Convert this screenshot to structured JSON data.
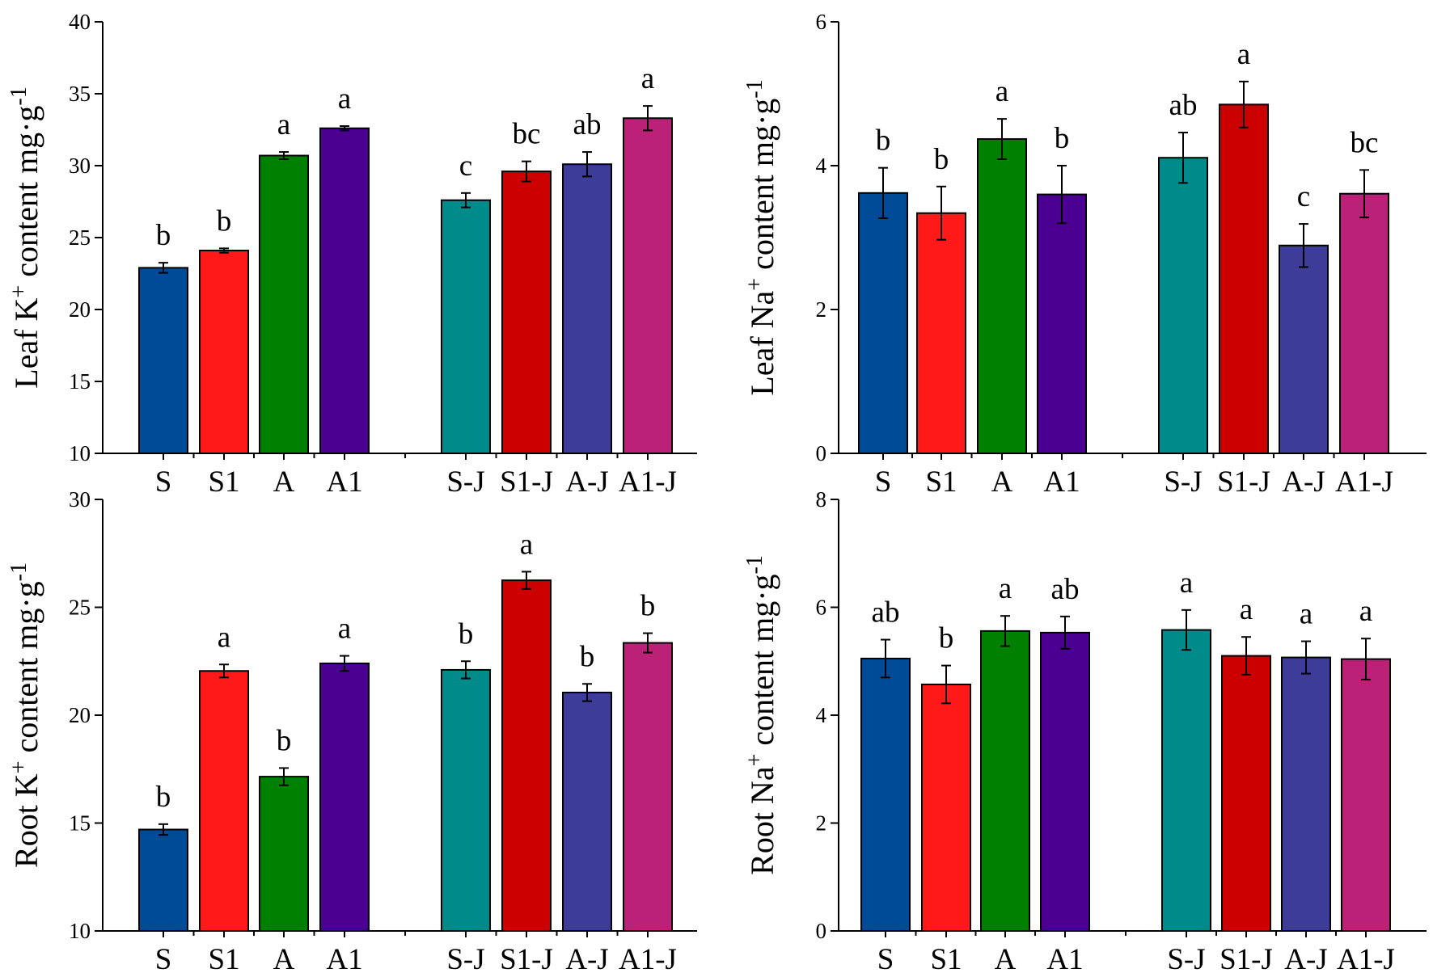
{
  "chart_data": [
    {
      "type": "bar",
      "ylabel": {
        "pre": "Leaf K",
        "ion": "+",
        "mid": " content mg·g",
        "exp": "-1"
      },
      "ylim": [
        10,
        40
      ],
      "yticks": [
        "10",
        "15",
        "20",
        "25",
        "30",
        "35",
        "40"
      ],
      "categories": [
        "S",
        "S1",
        "A",
        "A1",
        "S-J",
        "S1-J",
        "A-J",
        "A1-J"
      ],
      "values": [
        22.9,
        24.1,
        30.7,
        32.6,
        27.6,
        29.6,
        30.1,
        33.3
      ],
      "errors": [
        0.35,
        0.15,
        0.25,
        0.15,
        0.5,
        0.7,
        0.85,
        0.85
      ],
      "letters": [
        "b",
        "b",
        "a",
        "a",
        "c",
        "bc",
        "ab",
        "a"
      ],
      "colors": [
        "#004b97",
        "#ff1919",
        "#008000",
        "#4b0092",
        "#008a8a",
        "#cc0000",
        "#3d3d99",
        "#bb2277"
      ]
    },
    {
      "type": "bar",
      "ylabel": {
        "pre": "Leaf Na",
        "ion": "+",
        "mid": " content mg·g",
        "exp": "-1"
      },
      "ylim": [
        0,
        6
      ],
      "yticks": [
        "0",
        "2",
        "4",
        "6"
      ],
      "categories": [
        "S",
        "S1",
        "A",
        "A1",
        "S-J",
        "S1-J",
        "A-J",
        "A1-J"
      ],
      "values": [
        3.62,
        3.34,
        4.37,
        3.6,
        4.11,
        4.85,
        2.89,
        3.61
      ],
      "errors": [
        0.35,
        0.37,
        0.28,
        0.4,
        0.35,
        0.32,
        0.3,
        0.33
      ],
      "letters": [
        "b",
        "b",
        "a",
        "b",
        "ab",
        "a",
        "c",
        "bc"
      ],
      "colors": [
        "#004b97",
        "#ff1919",
        "#008000",
        "#4b0092",
        "#008a8a",
        "#cc0000",
        "#3d3d99",
        "#bb2277"
      ]
    },
    {
      "type": "bar",
      "ylabel": {
        "pre": "Root K",
        "ion": "+",
        "mid": " content mg·g",
        "exp": "-1"
      },
      "ylim": [
        10,
        30
      ],
      "yticks": [
        "10",
        "15",
        "20",
        "25",
        "30"
      ],
      "categories": [
        "S",
        "S1",
        "A",
        "A1",
        "S-J",
        "S1-J",
        "A-J",
        "A1-J"
      ],
      "values": [
        14.7,
        22.05,
        17.15,
        22.4,
        22.1,
        26.25,
        21.05,
        23.35
      ],
      "errors": [
        0.25,
        0.3,
        0.4,
        0.35,
        0.4,
        0.4,
        0.4,
        0.45
      ],
      "letters": [
        "b",
        "a",
        "b",
        "a",
        "b",
        "a",
        "b",
        "b"
      ],
      "colors": [
        "#004b97",
        "#ff1919",
        "#008000",
        "#4b0092",
        "#008a8a",
        "#cc0000",
        "#3d3d99",
        "#bb2277"
      ]
    },
    {
      "type": "bar",
      "ylabel": {
        "pre": "Root Na",
        "ion": "+",
        "mid": " content mg·g",
        "exp": "-1"
      },
      "ylim": [
        0,
        8
      ],
      "yticks": [
        "0",
        "2",
        "4",
        "6",
        "8"
      ],
      "categories": [
        "S",
        "S1",
        "A",
        "A1",
        "S-J",
        "S1-J",
        "A-J",
        "A1-J"
      ],
      "values": [
        5.05,
        4.57,
        5.56,
        5.53,
        5.58,
        5.1,
        5.07,
        5.04
      ],
      "errors": [
        0.35,
        0.35,
        0.28,
        0.3,
        0.37,
        0.35,
        0.3,
        0.38
      ],
      "letters": [
        "ab",
        "b",
        "a",
        "ab",
        "a",
        "a",
        "a",
        "a"
      ],
      "colors": [
        "#004b97",
        "#ff1919",
        "#008000",
        "#4b0092",
        "#008a8a",
        "#cc0000",
        "#3d3d99",
        "#bb2277"
      ]
    }
  ]
}
